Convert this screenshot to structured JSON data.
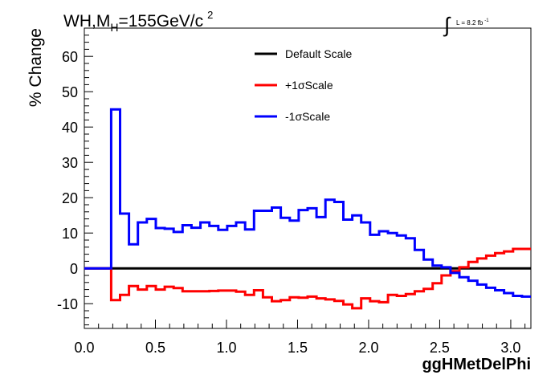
{
  "chart_data": {
    "type": "line",
    "title_main": "WH,M",
    "title_sub": "H",
    "title_rest": "=155GeV/c",
    "title_sup": "2",
    "lumi_symbol": "∫",
    "lumi_text": "L = 8.2 fb",
    "lumi_sup": "-1",
    "ylabel": "% Change",
    "xlabel": "ggHMetDelPhi",
    "xlim": [
      0.0,
      3.1416
    ],
    "ylim": [
      -17,
      68
    ],
    "x_ticks": [
      0.0,
      0.5,
      1.0,
      1.5,
      2.0,
      2.5,
      3.0
    ],
    "x_tick_labels": [
      "0.0",
      "0.5",
      "1.0",
      "1.5",
      "2.0",
      "2.5",
      "3.0"
    ],
    "y_ticks": [
      -10,
      0,
      10,
      20,
      30,
      40,
      50,
      60
    ],
    "y_tick_labels": [
      "-10",
      "0",
      "10",
      "20",
      "30",
      "40",
      "50",
      "60"
    ],
    "legend_position": "top-center",
    "bin_edges": [
      0.0,
      0.1885,
      0.2513,
      0.3142,
      0.377,
      0.4398,
      0.5027,
      0.5655,
      0.6283,
      0.6912,
      0.754,
      0.8168,
      0.8796,
      0.9425,
      1.0053,
      1.0681,
      1.131,
      1.1938,
      1.2566,
      1.3195,
      1.3823,
      1.4451,
      1.508,
      1.5708,
      1.6336,
      1.6965,
      1.7593,
      1.8221,
      1.885,
      1.9478,
      2.0106,
      2.0735,
      2.1363,
      2.1991,
      2.2619,
      2.3248,
      2.3876,
      2.4504,
      2.5133,
      2.5761,
      2.6389,
      2.7018,
      2.7646,
      2.8274,
      2.8903,
      2.9531,
      3.0159,
      3.0788,
      3.1416
    ],
    "series": [
      {
        "name": "Default Scale",
        "color": "#000000",
        "values": [
          0,
          0,
          0,
          0,
          0,
          0,
          0,
          0,
          0,
          0,
          0,
          0,
          0,
          0,
          0,
          0,
          0,
          0,
          0,
          0,
          0,
          0,
          0,
          0,
          0,
          0,
          0,
          0,
          0,
          0,
          0,
          0,
          0,
          0,
          0,
          0,
          0,
          0,
          0,
          0,
          0,
          0,
          0,
          0,
          0,
          0,
          0,
          0
        ]
      },
      {
        "name": "+1σScale",
        "color": "#ff0000",
        "values": [
          0,
          -9,
          -7.5,
          -5,
          -6,
          -5,
          -6,
          -5.2,
          -5.6,
          -6.5,
          -6.5,
          -6.5,
          -6.4,
          -6.3,
          -6.3,
          -6.6,
          -7.5,
          -6.2,
          -8.2,
          -9.3,
          -9,
          -8.2,
          -8.3,
          -8,
          -8.5,
          -8.8,
          -9.2,
          -10.2,
          -11.3,
          -8.5,
          -9.3,
          -9.6,
          -7.5,
          -7.8,
          -7.3,
          -6.5,
          -5.8,
          -4.2,
          -2,
          -0.8,
          0.3,
          1.8,
          2.8,
          3.6,
          4.3,
          4.8,
          5.5,
          5.5
        ]
      },
      {
        "name": "-1σScale",
        "color": "#0000ff",
        "values": [
          0,
          45,
          15.5,
          6.8,
          13,
          14,
          11.4,
          11.2,
          10.3,
          12.2,
          11.5,
          13,
          12,
          10.9,
          12,
          13,
          11,
          16.3,
          16.3,
          17.2,
          14.3,
          13.5,
          16.5,
          17,
          14.5,
          19.4,
          18.8,
          13.8,
          15,
          13,
          9.5,
          10.5,
          10,
          9.3,
          8.5,
          5.2,
          2.5,
          0.8,
          0.3,
          -1.3,
          -2.5,
          -3.5,
          -4.6,
          -5.5,
          -6.2,
          -7,
          -7.8,
          -8
        ]
      }
    ]
  }
}
